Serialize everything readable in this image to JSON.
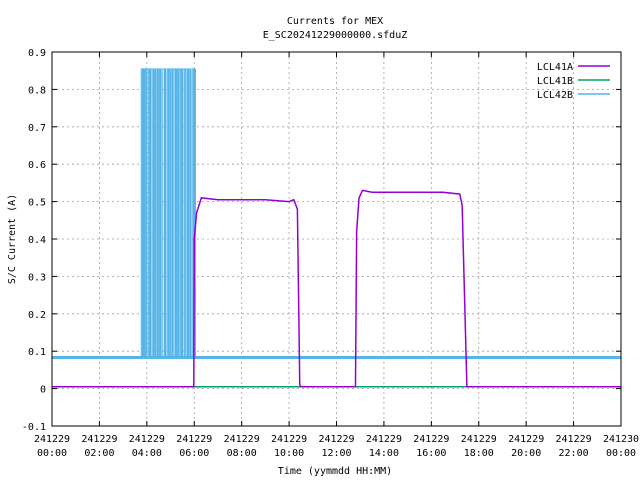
{
  "chart_data": {
    "type": "line",
    "title": "Currents for MEX",
    "subtitle": "E_SC20241229000000.sfduZ",
    "xlabel": "Time (yymmdd HH:MM)",
    "ylabel": "S/C Current (A)",
    "xlim": [
      0,
      24
    ],
    "ylim": [
      -0.1,
      0.9
    ],
    "grid": true,
    "legend_position": "top-right",
    "x_ticks": [
      {
        "value": 0,
        "date": "241229",
        "time": "00:00"
      },
      {
        "value": 2,
        "date": "241229",
        "time": "02:00"
      },
      {
        "value": 4,
        "date": "241229",
        "time": "04:00"
      },
      {
        "value": 6,
        "date": "241229",
        "time": "06:00"
      },
      {
        "value": 8,
        "date": "241229",
        "time": "08:00"
      },
      {
        "value": 10,
        "date": "241229",
        "time": "10:00"
      },
      {
        "value": 12,
        "date": "241229",
        "time": "12:00"
      },
      {
        "value": 14,
        "date": "241229",
        "time": "14:00"
      },
      {
        "value": 16,
        "date": "241229",
        "time": "16:00"
      },
      {
        "value": 18,
        "date": "241229",
        "time": "18:00"
      },
      {
        "value": 20,
        "date": "241229",
        "time": "20:00"
      },
      {
        "value": 22,
        "date": "241229",
        "time": "22:00"
      },
      {
        "value": 24,
        "date": "241230",
        "time": "00:00"
      }
    ],
    "y_ticks": [
      "-0.1",
      "0",
      "0.1",
      "0.2",
      "0.3",
      "0.4",
      "0.5",
      "0.6",
      "0.7",
      "0.8",
      "0.9"
    ],
    "series": [
      {
        "name": "LCL41A",
        "color": "#9400d3",
        "x": [
          0,
          5.98,
          6.0,
          6.1,
          6.3,
          7.0,
          8.0,
          9.0,
          10.0,
          10.2,
          10.35,
          10.45,
          10.5,
          12.8,
          12.85,
          12.95,
          13.1,
          13.5,
          14.5,
          15.5,
          16.5,
          17.2,
          17.3,
          17.5,
          24
        ],
        "values": [
          0.005,
          0.005,
          0.4,
          0.47,
          0.51,
          0.505,
          0.505,
          0.505,
          0.5,
          0.505,
          0.48,
          0.01,
          0.005,
          0.005,
          0.42,
          0.51,
          0.53,
          0.525,
          0.525,
          0.525,
          0.525,
          0.52,
          0.49,
          0.005,
          0.005
        ]
      },
      {
        "name": "LCL41B",
        "color": "#009e73",
        "x": [
          0,
          24
        ],
        "values": [
          0.005,
          0.005
        ]
      },
      {
        "name": "LCL42B",
        "color": "#56b4e9",
        "x": [
          0,
          3.7,
          3.72,
          6.05,
          6.1,
          24
        ],
        "values": [
          0.083,
          0.083,
          0.855,
          0.083,
          0.083,
          0.083
        ],
        "oscillation": {
          "x_start": 3.72,
          "x_end": 6.05,
          "low": 0.083,
          "high": 0.855
        }
      }
    ]
  }
}
